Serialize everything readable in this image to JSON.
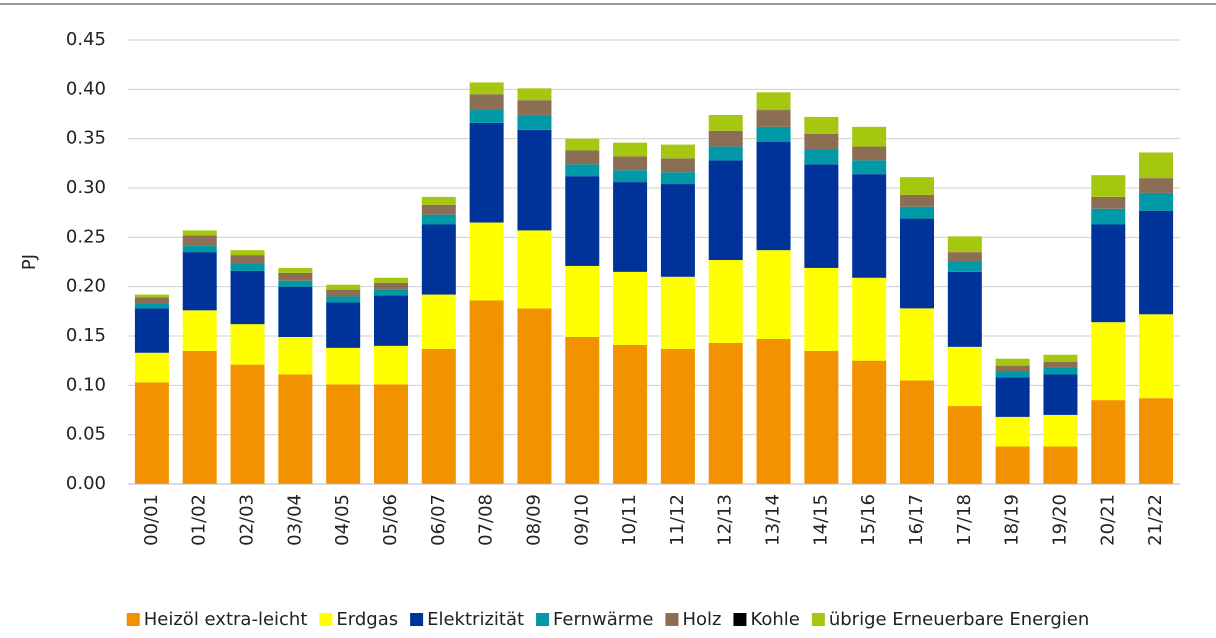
{
  "chart_data": {
    "type": "stacked_bar",
    "y_label": "PJ",
    "categories": [
      "00/01",
      "01/02",
      "02/03",
      "03/04",
      "04/05",
      "05/06",
      "06/07",
      "07/08",
      "08/09",
      "09/10",
      "10/11",
      "11/12",
      "12/13",
      "13/14",
      "14/15",
      "15/16",
      "16/17",
      "17/18",
      "18/19",
      "19/20",
      "20/21",
      "21/22"
    ],
    "series": [
      {
        "name": "Heizöl extra-leicht",
        "color": "#f39200",
        "values": [
          0.103,
          0.135,
          0.121,
          0.111,
          0.101,
          0.101,
          0.137,
          0.186,
          0.178,
          0.149,
          0.141,
          0.137,
          0.143,
          0.147,
          0.135,
          0.125,
          0.105,
          0.079,
          0.038,
          0.038,
          0.085,
          0.087
        ]
      },
      {
        "name": "Erdgas",
        "color": "#ffff00",
        "values": [
          0.03,
          0.041,
          0.041,
          0.038,
          0.037,
          0.039,
          0.055,
          0.079,
          0.079,
          0.072,
          0.074,
          0.073,
          0.084,
          0.09,
          0.084,
          0.084,
          0.073,
          0.06,
          0.03,
          0.032,
          0.079,
          0.085
        ]
      },
      {
        "name": "Elektrizität",
        "color": "#003399",
        "values": [
          0.045,
          0.059,
          0.054,
          0.051,
          0.046,
          0.051,
          0.071,
          0.101,
          0.102,
          0.091,
          0.091,
          0.094,
          0.101,
          0.11,
          0.105,
          0.105,
          0.091,
          0.076,
          0.04,
          0.041,
          0.099,
          0.105
        ]
      },
      {
        "name": "Fernwärme",
        "color": "#0099a8",
        "values": [
          0.005,
          0.007,
          0.007,
          0.006,
          0.006,
          0.006,
          0.01,
          0.013,
          0.014,
          0.012,
          0.012,
          0.012,
          0.014,
          0.015,
          0.015,
          0.014,
          0.012,
          0.01,
          0.006,
          0.007,
          0.016,
          0.018
        ]
      },
      {
        "name": "Holz",
        "color": "#8c6e55",
        "values": [
          0.006,
          0.01,
          0.009,
          0.008,
          0.007,
          0.007,
          0.01,
          0.016,
          0.016,
          0.014,
          0.014,
          0.014,
          0.016,
          0.017,
          0.016,
          0.014,
          0.012,
          0.01,
          0.006,
          0.006,
          0.012,
          0.015
        ]
      },
      {
        "name": "Kohle",
        "color": "#000000",
        "values": [
          0,
          0,
          0,
          0,
          0,
          0,
          0,
          0,
          0,
          0,
          0,
          0,
          0,
          0,
          0,
          0,
          0,
          0,
          0,
          0,
          0,
          0
        ]
      },
      {
        "name": "übrige Erneuerbare Energien",
        "color": "#a6c70f",
        "values": [
          0.003,
          0.005,
          0.005,
          0.005,
          0.005,
          0.005,
          0.008,
          0.012,
          0.012,
          0.012,
          0.014,
          0.014,
          0.016,
          0.018,
          0.017,
          0.02,
          0.018,
          0.016,
          0.007,
          0.007,
          0.022,
          0.026
        ]
      }
    ],
    "ylim": [
      0,
      0.45
    ],
    "yticks": [
      {
        "value": 0,
        "label": "0.00"
      },
      {
        "value": 0.05,
        "label": "0.05"
      },
      {
        "value": 0.1,
        "label": "0.10"
      },
      {
        "value": 0.15,
        "label": "0.15"
      },
      {
        "value": 0.2,
        "label": "0.20"
      },
      {
        "value": 0.25,
        "label": "0.25"
      },
      {
        "value": 0.3,
        "label": "0.30"
      },
      {
        "value": 0.35,
        "label": "0.35"
      },
      {
        "value": 0.4,
        "label": "0.40"
      },
      {
        "value": 0.45,
        "label": "0.45"
      }
    ],
    "grid": true,
    "legend": "bottom"
  }
}
